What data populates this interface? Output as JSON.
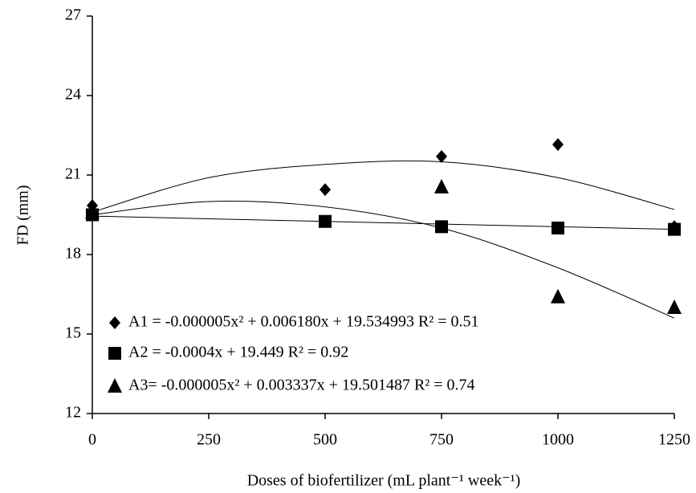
{
  "chart_data": {
    "type": "scatter",
    "x_label": "Doses of biofertilizer (mL plant⁻¹ week⁻¹)",
    "y_label": "FD (mm)",
    "xlim": [
      0,
      1250
    ],
    "xticks": [
      0,
      250,
      500,
      750,
      1000,
      1250
    ],
    "ylim": [
      12,
      27
    ],
    "yticks": [
      12,
      15,
      18,
      21,
      24,
      27
    ],
    "series": [
      {
        "name": "A1 = -0.000005x² + 0.006180x + 19.534993 R² = 0.51",
        "marker": "diamond",
        "color": "#000000",
        "x": [
          0,
          500,
          750,
          1000,
          1250
        ],
        "values": [
          19.85,
          20.45,
          21.7,
          22.15,
          19.05
        ],
        "fit_x": [
          0,
          250,
          500,
          750,
          1000,
          1250
        ],
        "fit_values": [
          19.6,
          20.9,
          21.4,
          21.5,
          20.9,
          19.7
        ]
      },
      {
        "name": "A2 = -0.0004x + 19.449 R² = 0.92",
        "marker": "square",
        "color": "#000000",
        "x": [
          0,
          500,
          750,
          1000,
          1250
        ],
        "values": [
          19.5,
          19.25,
          19.05,
          19.0,
          18.95
        ],
        "fit_x": [
          0,
          1250
        ],
        "fit_values": [
          19.45,
          18.95
        ]
      },
      {
        "name": "A3= -0.000005x² + 0.003337x + 19.501487 R² = 0.74",
        "marker": "triangle",
        "color": "#000000",
        "x": [
          0,
          750,
          1000,
          1250
        ],
        "values": [
          19.6,
          20.55,
          16.4,
          16.0
        ],
        "fit_x": [
          0,
          250,
          500,
          750,
          1000,
          1250
        ],
        "fit_values": [
          19.5,
          20.0,
          19.8,
          19.0,
          17.5,
          15.6
        ]
      }
    ]
  }
}
